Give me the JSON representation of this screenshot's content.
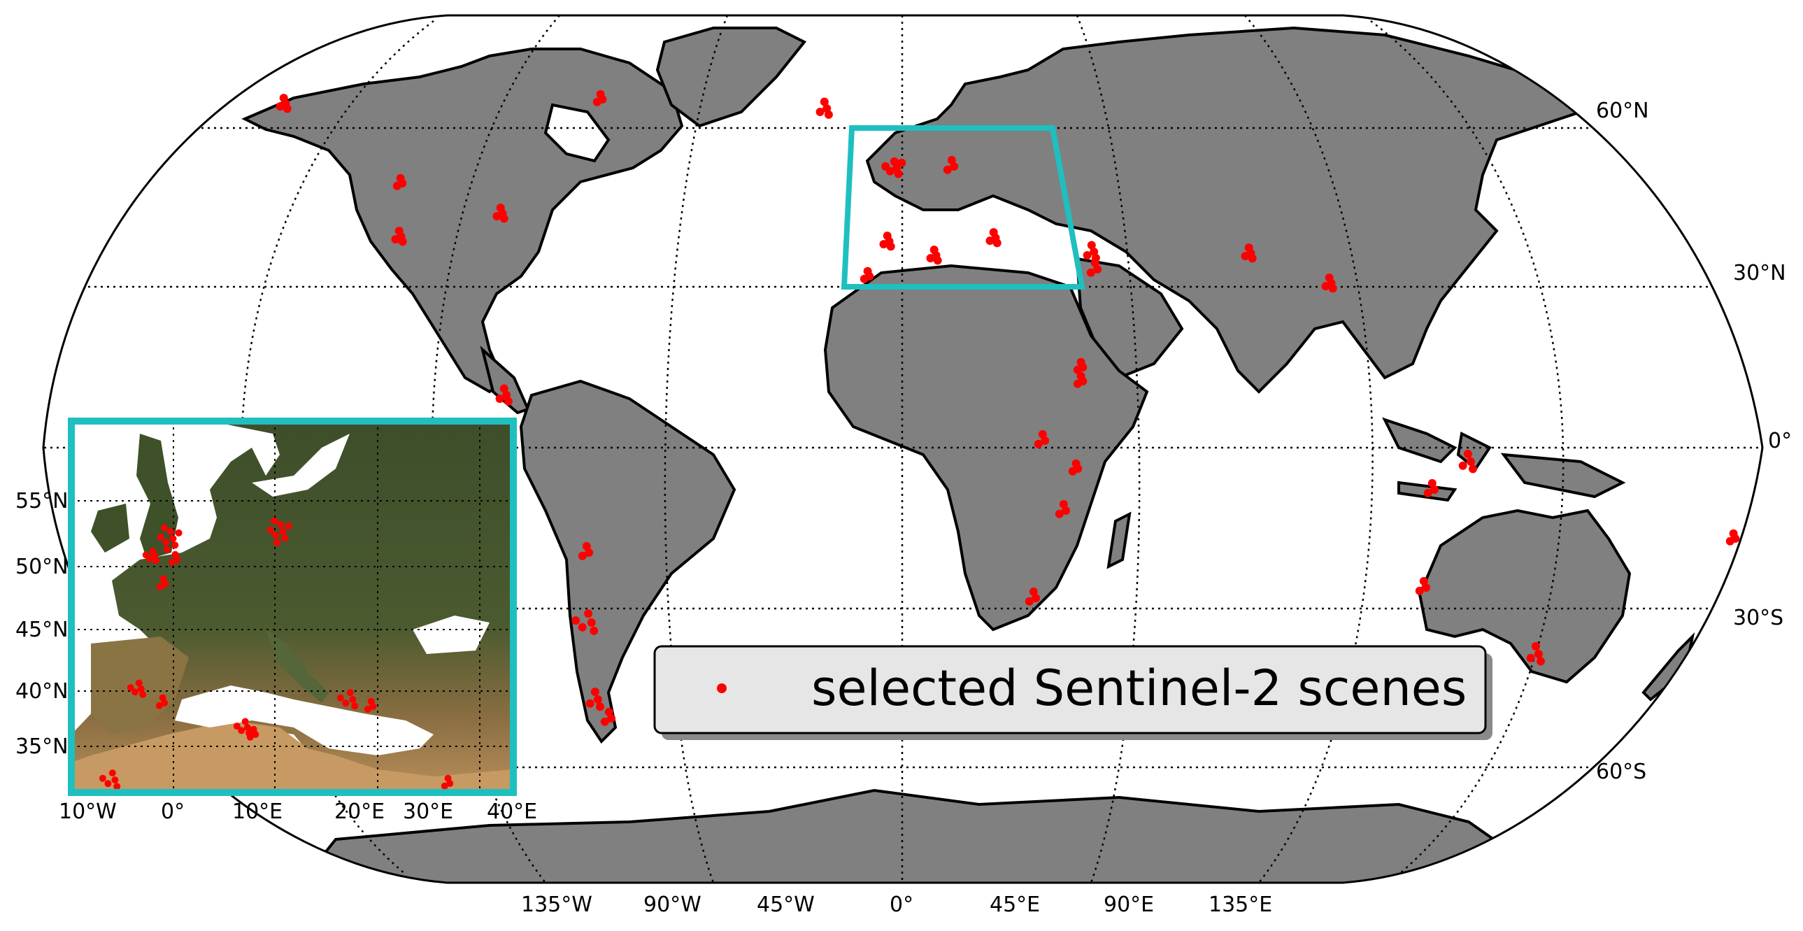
{
  "legend": {
    "label": "selected Sentinel-2 scenes",
    "marker_color": "#ff0000"
  },
  "main_map": {
    "projection": "Robinson",
    "graticule": "dotted",
    "lon_labels": [
      "135°W",
      "90°W",
      "45°W",
      "0°",
      "45°E",
      "90°E",
      "135°E"
    ],
    "lat_labels": [
      "60°N",
      "30°N",
      "0°",
      "30°S",
      "60°S"
    ],
    "land_color": "#808080",
    "ocean_color": "#ffffff",
    "highlight_box_color": "#1fbfbf"
  },
  "inset_map": {
    "extent": "Europe / Mediterranean",
    "lon_labels": [
      "10°W",
      "0°",
      "10°E",
      "20°E",
      "30°E",
      "40°E"
    ],
    "lat_labels": [
      "55°N",
      "50°N",
      "45°N",
      "40°N",
      "35°N"
    ],
    "frame_color": "#1fbfbf"
  },
  "colors": {
    "marker": "#ff0000",
    "land": "#808080",
    "inset_land": "#4a5a2e",
    "frame": "#1fbfbf"
  }
}
